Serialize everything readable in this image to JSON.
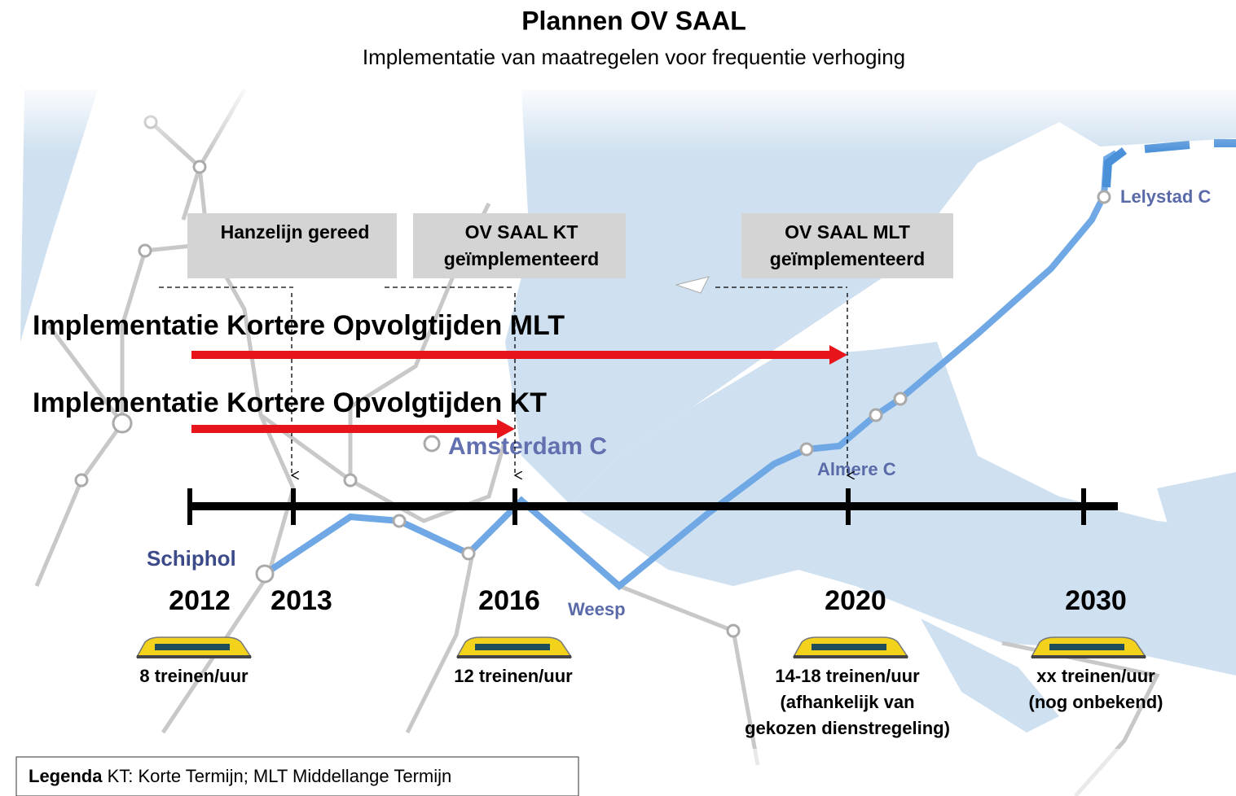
{
  "header": {
    "title": "Plannen OV SAAL",
    "subtitle": "Implementatie van maatregelen voor frequentie verhoging"
  },
  "milestones": [
    {
      "lines": [
        "Hanzelijn gereed"
      ]
    },
    {
      "lines": [
        "OV SAAL KT",
        "geïmplementeerd"
      ]
    },
    {
      "lines": [
        "OV SAAL MLT",
        "geïmplementeerd"
      ]
    }
  ],
  "programs": [
    {
      "label": "Implementatie Kortere Opvolgtijden MLT"
    },
    {
      "label": "Implementatie Kortere Opvolgtijden KT"
    }
  ],
  "years": [
    "2012",
    "2013",
    "2016",
    "2020",
    "2030"
  ],
  "frequencies": [
    {
      "lines": [
        "8 treinen/uur"
      ]
    },
    {
      "lines": [
        "12 treinen/uur"
      ]
    },
    {
      "lines": [
        "14-18 treinen/uur",
        "(afhankelijk van",
        "gekozen dienstregeling)"
      ]
    },
    {
      "lines": [
        "xx treinen/uur",
        "(nog onbekend)"
      ]
    }
  ],
  "map_labels": [
    "Schiphol",
    "Amsterdam C",
    "Weesp",
    "Almere C",
    "Lelystad C"
  ],
  "legend": {
    "label": "Legenda",
    "text": "KT: Korte Termijn; MLT Middellange Termijn"
  }
}
